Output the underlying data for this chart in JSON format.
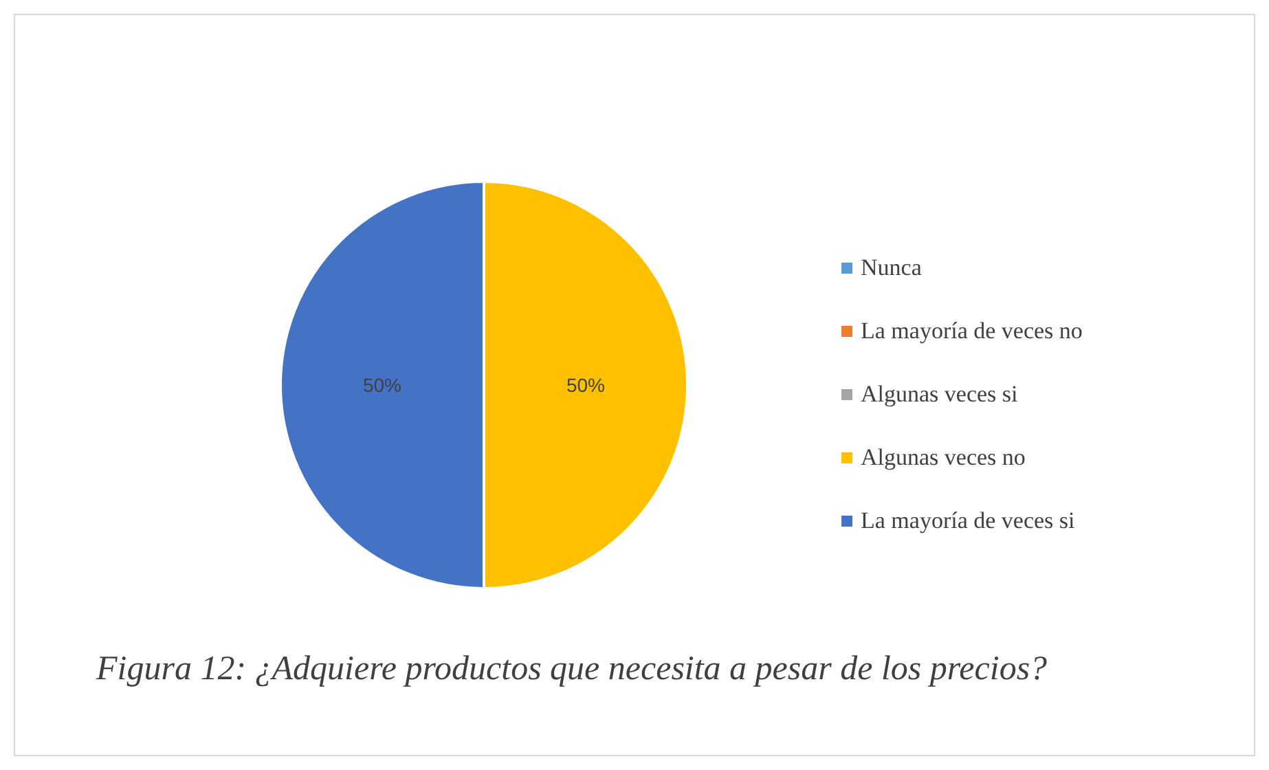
{
  "chart_data": {
    "type": "pie",
    "title": "Figura 12: ¿Adquiere productos que necesita a pesar de los precios?",
    "categories": [
      "Nunca",
      "La mayoría de veces no",
      "Algunas veces si",
      "Algunas veces no",
      "La mayoría de veces si"
    ],
    "values": [
      0,
      0,
      0,
      50,
      50
    ],
    "colors": [
      "#5b9bd5",
      "#ed7d31",
      "#a5a5a5",
      "#ffc000",
      "#4472c4"
    ],
    "value_labels": [
      null,
      null,
      null,
      "50%",
      "50%"
    ],
    "legend": "right"
  }
}
